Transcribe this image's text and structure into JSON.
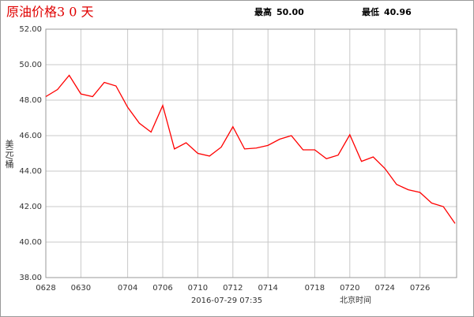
{
  "chart_data": {
    "type": "line",
    "title": "原油价格3 0 天",
    "high_label": "最高",
    "high": "50.00",
    "low_label": "最低",
    "low": "40.96",
    "ylabel": "美元/桶",
    "timestamp": "2016-07-29 07:35",
    "timezone": "北京时间",
    "categories": [
      "0628",
      null,
      null,
      "0630",
      null,
      null,
      null,
      "0704",
      null,
      null,
      "0706",
      null,
      null,
      "0710",
      null,
      null,
      "0712",
      null,
      null,
      "0714",
      null,
      null,
      null,
      "0718",
      null,
      null,
      "0720",
      null,
      null,
      "0724",
      null,
      null,
      "0726",
      null,
      null,
      null
    ],
    "series": [
      {
        "name": "原油价格",
        "color": "#ff0000",
        "values": [
          48.2,
          48.6,
          49.4,
          48.35,
          48.2,
          49.0,
          48.8,
          47.6,
          46.7,
          46.2,
          47.7,
          45.25,
          45.6,
          45.0,
          44.85,
          45.35,
          46.5,
          45.25,
          45.3,
          45.45,
          45.8,
          46.0,
          45.2,
          45.2,
          44.7,
          44.9,
          46.05,
          44.55,
          44.8,
          44.15,
          43.25,
          42.95,
          42.8,
          42.2,
          42.0,
          41.05
        ]
      }
    ],
    "ylim": [
      38,
      52
    ],
    "yticks": [
      {
        "value": 38,
        "label": "38.00"
      },
      {
        "value": 40,
        "label": "40.00"
      },
      {
        "value": 42,
        "label": "42.00"
      },
      {
        "value": 44,
        "label": "44.00"
      },
      {
        "value": 46,
        "label": "46.00"
      },
      {
        "value": 48,
        "label": "48.00"
      },
      {
        "value": 50,
        "label": "50.00"
      },
      {
        "value": 52,
        "label": "52.00"
      }
    ],
    "grid": true
  }
}
